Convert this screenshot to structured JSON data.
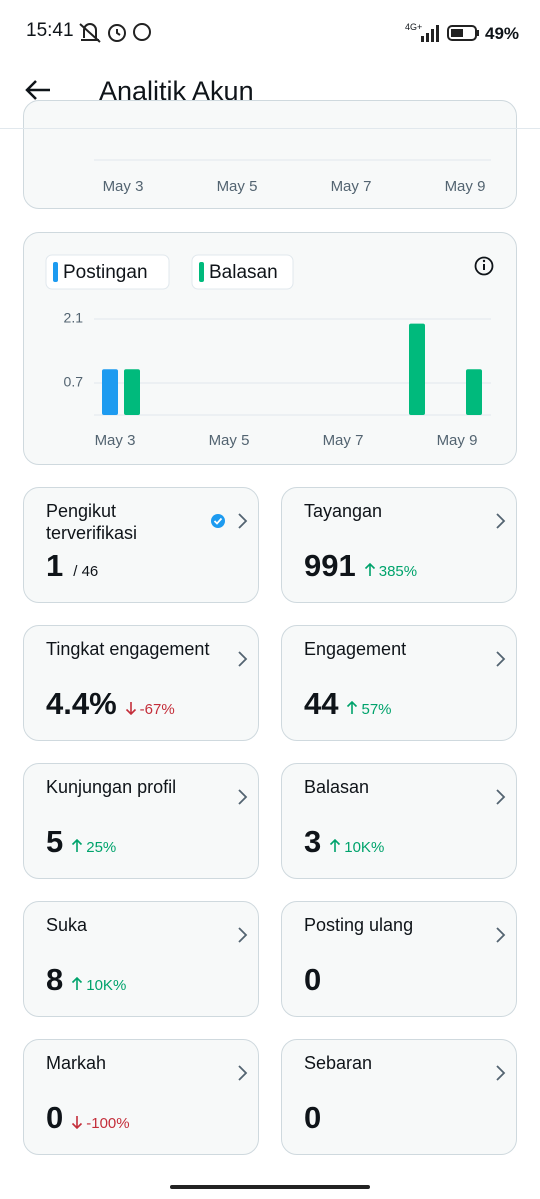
{
  "status_bar": {
    "time": "15:41",
    "network": "4G+",
    "battery": "49%"
  },
  "header": {
    "title": "Analitik Akun"
  },
  "previous_chart": {
    "x_labels": [
      "May 3",
      "May 5",
      "May 7",
      "May 9"
    ]
  },
  "chart_data": {
    "type": "bar",
    "categories": [
      "May 3",
      null,
      "May 5",
      null,
      "May 7",
      null,
      "May 9"
    ],
    "series": [
      {
        "name": "Postingan",
        "color": "#1d9bf0",
        "values": [
          1,
          0,
          0,
          0,
          0,
          0,
          0
        ]
      },
      {
        "name": "Balasan",
        "color": "#00ba7c",
        "values": [
          1,
          0,
          0,
          0,
          0,
          2,
          1
        ]
      }
    ],
    "ylim": [
      0,
      2.1
    ],
    "yticks": [
      0.7,
      2.1
    ],
    "grid": true
  },
  "metrics": [
    {
      "label": "Pengikut terverifikasi",
      "value": "1",
      "total": "/ 46",
      "verified": true
    },
    {
      "label": "Tayangan",
      "value": "991",
      "change": "385%",
      "trend": "up"
    },
    {
      "label": "Tingkat engagement",
      "value": "4.4%",
      "change": "-67%",
      "trend": "down"
    },
    {
      "label": "Engagement",
      "value": "44",
      "change": "57%",
      "trend": "up"
    },
    {
      "label": "Kunjungan profil",
      "value": "5",
      "change": "25%",
      "trend": "up"
    },
    {
      "label": "Balasan",
      "value": "3",
      "change": "10K%",
      "trend": "up"
    },
    {
      "label": "Suka",
      "value": "8",
      "change": "10K%",
      "trend": "up"
    },
    {
      "label": "Posting ulang",
      "value": "0"
    },
    {
      "label": "Markah",
      "value": "0",
      "change": "-100%",
      "trend": "down"
    },
    {
      "label": "Sebaran",
      "value": "0"
    }
  ]
}
